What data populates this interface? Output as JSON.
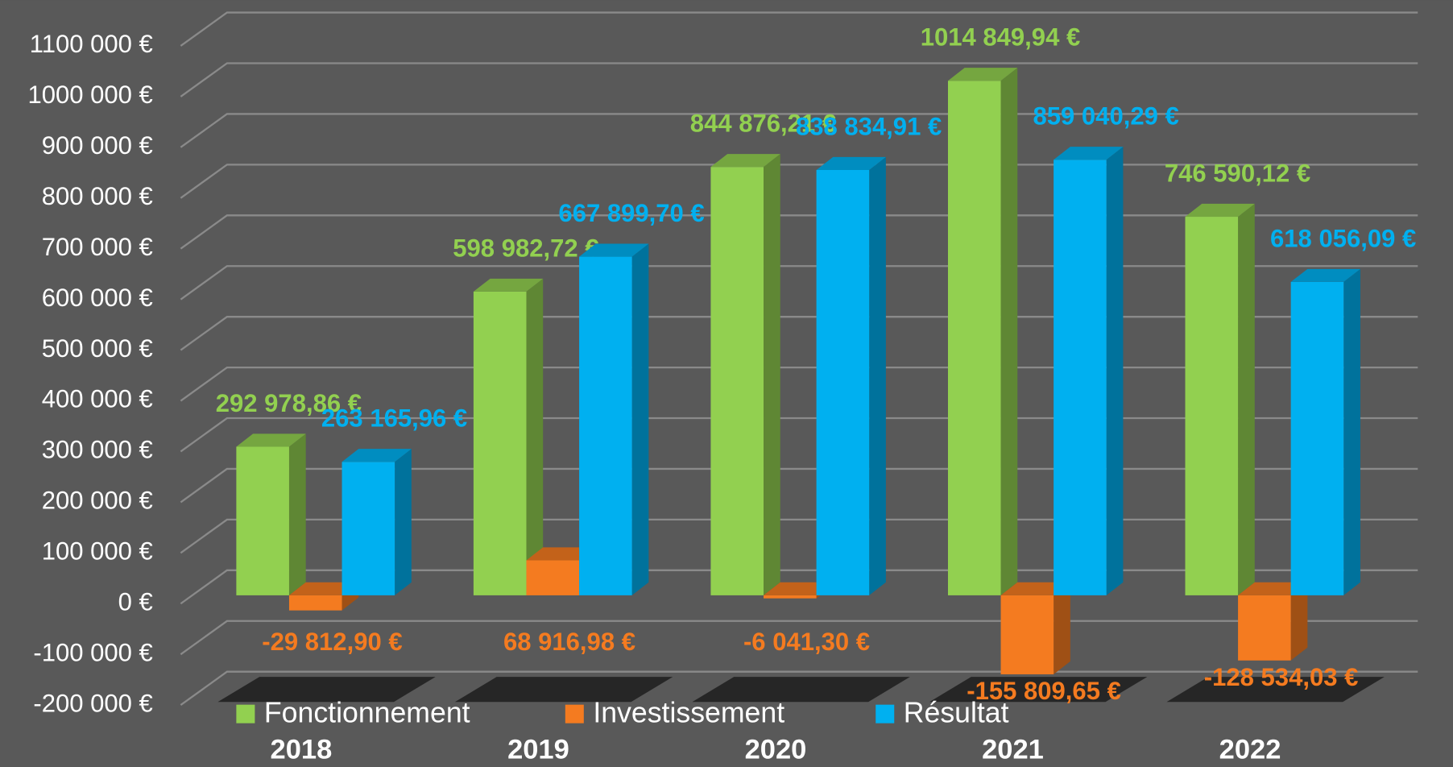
{
  "chart_data": {
    "type": "bar3d",
    "categories": [
      "2018",
      "2019",
      "2020",
      "2021",
      "2022"
    ],
    "series": [
      {
        "name": "Fonctionnement",
        "color": "#92d050",
        "values": [
          292978.86,
          598982.72,
          844876.21,
          1014849.94,
          746590.12
        ],
        "value_labels": [
          "292 978,86 €",
          "598 982,72 €",
          "844 876,21 €",
          "1014 849,94 €",
          "746 590,12 €"
        ]
      },
      {
        "name": "Investissement",
        "color": "#f47b20",
        "values": [
          -29812.9,
          68916.98,
          -6041.3,
          -155809.65,
          -128534.03
        ],
        "value_labels": [
          "-29 812,90 €",
          "68 916,98 €",
          "-6 041,30 €",
          "-155 809,65 €",
          "-128 534,03 €"
        ]
      },
      {
        "name": "Résultat",
        "color": "#00b0f0",
        "values": [
          263165.96,
          667899.7,
          838834.91,
          859040.29,
          618056.09
        ],
        "value_labels": [
          "263 165,96 €",
          "667 899,70 €",
          "838 834,91 €",
          "859 040,29 €",
          "618 056,09 €"
        ]
      }
    ],
    "ylim": [
      -200000,
      1100000
    ],
    "yticks": [
      {
        "value": -200000,
        "label": "-200 000 €"
      },
      {
        "value": -100000,
        "label": "-100 000 €"
      },
      {
        "value": 0,
        "label": "0 €"
      },
      {
        "value": 100000,
        "label": "100 000 €"
      },
      {
        "value": 200000,
        "label": "200 000 €"
      },
      {
        "value": 300000,
        "label": "300 000 €"
      },
      {
        "value": 400000,
        "label": "400 000 €"
      },
      {
        "value": 500000,
        "label": "500 000 €"
      },
      {
        "value": 600000,
        "label": "600 000 €"
      },
      {
        "value": 700000,
        "label": "700 000 €"
      },
      {
        "value": 800000,
        "label": "800 000 €"
      },
      {
        "value": 900000,
        "label": "900 000 €"
      },
      {
        "value": 1000000,
        "label": "1000 000 €"
      },
      {
        "value": 1100000,
        "label": "1100 000 €"
      }
    ],
    "grid": true,
    "legend": "bottom"
  }
}
